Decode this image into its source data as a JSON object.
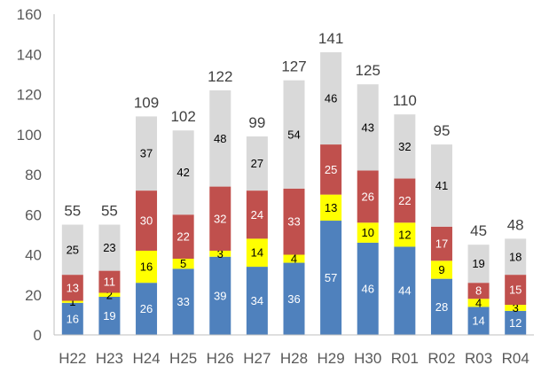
{
  "chart_data": {
    "type": "bar",
    "stacked": true,
    "categories": [
      "H22",
      "H23",
      "H24",
      "H25",
      "H26",
      "H27",
      "H28",
      "H29",
      "H30",
      "R01",
      "R02",
      "R03",
      "R04"
    ],
    "series": [
      {
        "color": "#4f81bd",
        "label_color": "#ffffff",
        "values": [
          16,
          19,
          26,
          33,
          39,
          34,
          36,
          57,
          46,
          44,
          28,
          14,
          12
        ]
      },
      {
        "color": "#ffff00",
        "label_color": "#000000",
        "values": [
          1,
          2,
          16,
          5,
          3,
          14,
          4,
          13,
          10,
          12,
          9,
          4,
          3
        ]
      },
      {
        "color": "#c0504d",
        "label_color": "#ffffff",
        "values": [
          13,
          11,
          30,
          22,
          32,
          24,
          33,
          25,
          26,
          22,
          17,
          8,
          15
        ]
      },
      {
        "color": "#d9d9d9",
        "label_color": "#000000",
        "values": [
          25,
          23,
          37,
          42,
          48,
          27,
          54,
          46,
          43,
          32,
          41,
          19,
          18
        ]
      }
    ],
    "totals": [
      55,
      55,
      109,
      102,
      122,
      99,
      127,
      141,
      125,
      110,
      95,
      45,
      48
    ],
    "ylim": [
      0,
      160
    ],
    "yticks": [
      0,
      20,
      40,
      60,
      80,
      100,
      120,
      140,
      160
    ],
    "grid": false,
    "legend": "none"
  }
}
